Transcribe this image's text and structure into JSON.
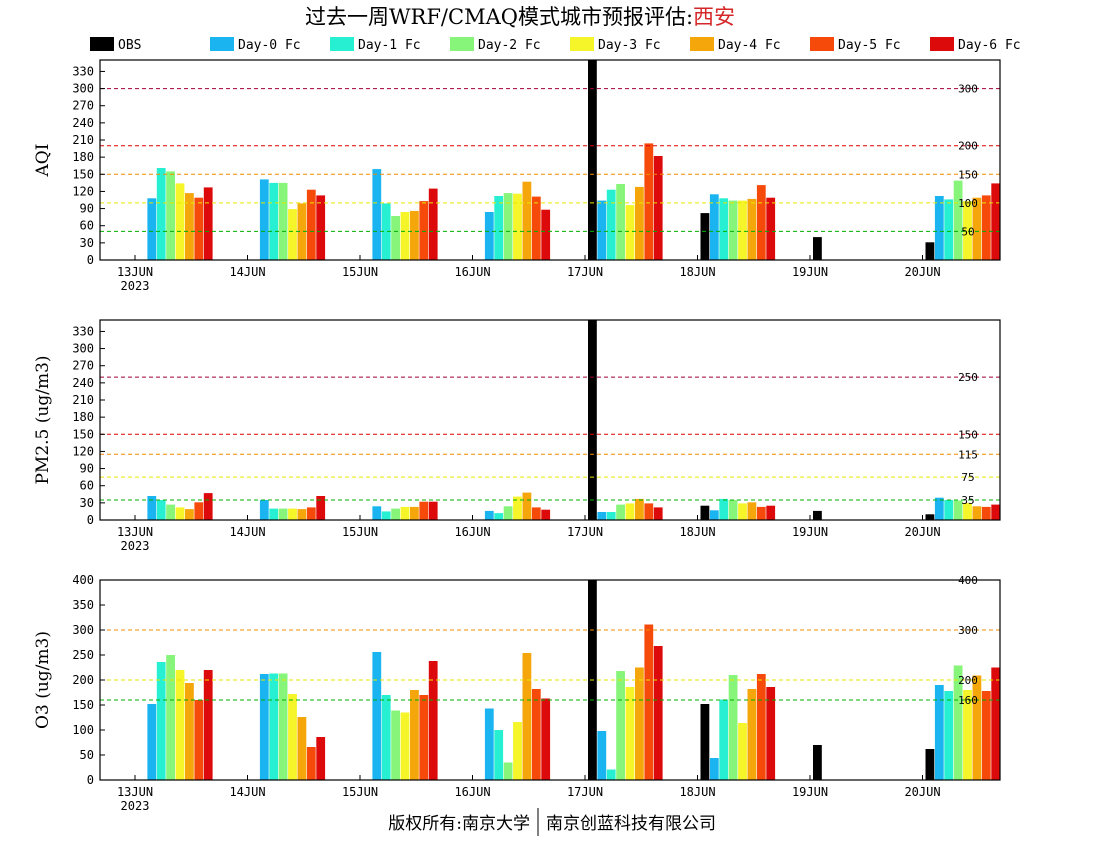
{
  "title": {
    "prefix": "过去一周WRF/CMAQ模式城市预报评估:",
    "city": "西安",
    "city_color": "#d62728"
  },
  "footer": {
    "left": "版权所有:南京大学",
    "right": "南京创蓝科技有限公司"
  },
  "legend": [
    {
      "label": "OBS",
      "color": "#000000"
    },
    {
      "label": "Day-0 Fc",
      "color": "#1ab4f0"
    },
    {
      "label": "Day-1 Fc",
      "color": "#27f0d2"
    },
    {
      "label": "Day-2 Fc",
      "color": "#87f57a"
    },
    {
      "label": "Day-3 Fc",
      "color": "#f5f529"
    },
    {
      "label": "Day-4 Fc",
      "color": "#f5a60a"
    },
    {
      "label": "Day-5 Fc",
      "color": "#f54a0a"
    },
    {
      "label": "Day-6 Fc",
      "color": "#dc0a0a"
    }
  ],
  "chart_data": [
    {
      "type": "bar",
      "ylabel": "AQI",
      "ylim": [
        0,
        350
      ],
      "yticks": [
        0,
        30,
        60,
        90,
        120,
        150,
        180,
        210,
        240,
        270,
        300,
        330
      ],
      "categories": [
        "13JUN",
        "14JUN",
        "15JUN",
        "16JUN",
        "17JUN",
        "18JUN",
        "19JUN",
        "20JUN"
      ],
      "year_label": "2023",
      "ref_lines": [
        {
          "value": 50,
          "label": "50",
          "color": "#00b000"
        },
        {
          "value": 100,
          "label": "100",
          "color": "#e6e600"
        },
        {
          "value": 150,
          "label": "150",
          "color": "#f08c00"
        },
        {
          "value": 200,
          "label": "200",
          "color": "#e00000"
        },
        {
          "value": 300,
          "label": "300",
          "color": "#a00030"
        }
      ],
      "series": [
        {
          "name": "OBS",
          "values": [
            null,
            null,
            null,
            null,
            360,
            82,
            40,
            31
          ]
        },
        {
          "name": "Day-0 Fc",
          "values": [
            108,
            141,
            159,
            84,
            104,
            115,
            null,
            112
          ]
        },
        {
          "name": "Day-1 Fc",
          "values": [
            161,
            135,
            99,
            112,
            123,
            108,
            null,
            106
          ]
        },
        {
          "name": "Day-2 Fc",
          "values": [
            155,
            135,
            77,
            117,
            133,
            104,
            null,
            139
          ]
        },
        {
          "name": "Day-3 Fc",
          "values": [
            134,
            89,
            84,
            116,
            96,
            104,
            null,
            103
          ]
        },
        {
          "name": "Day-4 Fc",
          "values": [
            117,
            99,
            86,
            137,
            128,
            107,
            null,
            109
          ]
        },
        {
          "name": "Day-5 Fc",
          "values": [
            109,
            123,
            103,
            111,
            204,
            131,
            null,
            113
          ]
        },
        {
          "name": "Day-6 Fc",
          "values": [
            127,
            113,
            125,
            88,
            182,
            109,
            null,
            134
          ]
        }
      ]
    },
    {
      "type": "bar",
      "ylabel": "PM2.5 (ug/m3)",
      "ylim": [
        0,
        350
      ],
      "yticks": [
        0,
        30,
        60,
        90,
        120,
        150,
        180,
        210,
        240,
        270,
        300,
        330
      ],
      "categories": [
        "13JUN",
        "14JUN",
        "15JUN",
        "16JUN",
        "17JUN",
        "18JUN",
        "19JUN",
        "20JUN"
      ],
      "year_label": "2023",
      "ref_lines": [
        {
          "value": 35,
          "label": "35",
          "color": "#00b000"
        },
        {
          "value": 75,
          "label": "75",
          "color": "#e6e600"
        },
        {
          "value": 115,
          "label": "115",
          "color": "#f08c00"
        },
        {
          "value": 150,
          "label": "150",
          "color": "#e00000"
        },
        {
          "value": 250,
          "label": "250",
          "color": "#a00030"
        }
      ],
      "series": [
        {
          "name": "OBS",
          "values": [
            null,
            null,
            null,
            null,
            360,
            25,
            16,
            10
          ]
        },
        {
          "name": "Day-0 Fc",
          "values": [
            42,
            35,
            24,
            16,
            14,
            17,
            null,
            39
          ]
        },
        {
          "name": "Day-1 Fc",
          "values": [
            35,
            20,
            15,
            12,
            14,
            37,
            null,
            35
          ]
        },
        {
          "name": "Day-2 Fc",
          "values": [
            27,
            20,
            20,
            24,
            27,
            35,
            null,
            34
          ]
        },
        {
          "name": "Day-3 Fc",
          "values": [
            22,
            20,
            23,
            41,
            29,
            29,
            null,
            30
          ]
        },
        {
          "name": "Day-4 Fc",
          "values": [
            19,
            19,
            23,
            48,
            37,
            31,
            null,
            24
          ]
        },
        {
          "name": "Day-5 Fc",
          "values": [
            31,
            22,
            32,
            22,
            29,
            23,
            null,
            23
          ]
        },
        {
          "name": "Day-6 Fc",
          "values": [
            47,
            42,
            32,
            18,
            22,
            25,
            null,
            27
          ]
        }
      ]
    },
    {
      "type": "bar",
      "ylabel": "O3 (ug/m3)",
      "ylim": [
        0,
        400
      ],
      "yticks": [
        0,
        50,
        100,
        150,
        200,
        250,
        300,
        350,
        400
      ],
      "categories": [
        "13JUN",
        "14JUN",
        "15JUN",
        "16JUN",
        "17JUN",
        "18JUN",
        "19JUN",
        "20JUN"
      ],
      "year_label": "2023",
      "ref_lines": [
        {
          "value": 160,
          "label": "160",
          "color": "#00b000"
        },
        {
          "value": 200,
          "label": "200",
          "color": "#e6e600"
        },
        {
          "value": 300,
          "label": "300",
          "color": "#f08c00"
        },
        {
          "value": 400,
          "label": "400",
          "color": "#e00000"
        }
      ],
      "series": [
        {
          "name": "OBS",
          "values": [
            null,
            null,
            null,
            null,
            400,
            152,
            70,
            62
          ]
        },
        {
          "name": "Day-0 Fc",
          "values": [
            152,
            212,
            256,
            143,
            98,
            44,
            null,
            190
          ]
        },
        {
          "name": "Day-1 Fc",
          "values": [
            236,
            213,
            170,
            100,
            21,
            161,
            null,
            178
          ]
        },
        {
          "name": "Day-2 Fc",
          "values": [
            250,
            213,
            139,
            35,
            218,
            210,
            null,
            229
          ]
        },
        {
          "name": "Day-3 Fc",
          "values": [
            220,
            172,
            135,
            116,
            186,
            114,
            null,
            180
          ]
        },
        {
          "name": "Day-4 Fc",
          "values": [
            194,
            126,
            180,
            254,
            225,
            182,
            null,
            209
          ]
        },
        {
          "name": "Day-5 Fc",
          "values": [
            160,
            66,
            170,
            182,
            311,
            212,
            null,
            178
          ]
        },
        {
          "name": "Day-6 Fc",
          "values": [
            220,
            86,
            238,
            163,
            268,
            186,
            null,
            225
          ]
        }
      ]
    }
  ]
}
